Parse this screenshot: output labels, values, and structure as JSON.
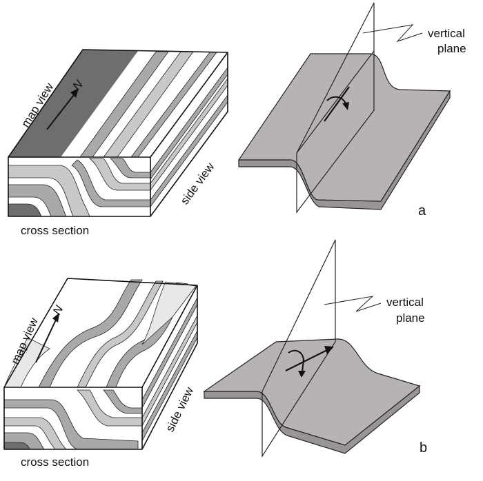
{
  "panel_a": {
    "map_view_label": "map view",
    "north_label": "N",
    "side_view_label": "side view",
    "cross_section_label": "cross section",
    "vertical_plane_line1": "vertical",
    "vertical_plane_line2": "plane",
    "panel_letter": "a"
  },
  "panel_b": {
    "map_view_label": "map view",
    "north_label": "N",
    "side_view_label": "side view",
    "cross_section_label": "cross section",
    "vertical_plane_line1": "vertical",
    "vertical_plane_line2": "plane",
    "panel_letter": "b"
  },
  "colors": {
    "dark_gray": "#6e6e6e",
    "mid_gray": "#a9a9a9",
    "light_gray": "#c8c8c8",
    "pale": "#e8e8e8",
    "surface": "#b8b3b3",
    "surface_edge": "#9a9595",
    "white": "#ffffff"
  }
}
